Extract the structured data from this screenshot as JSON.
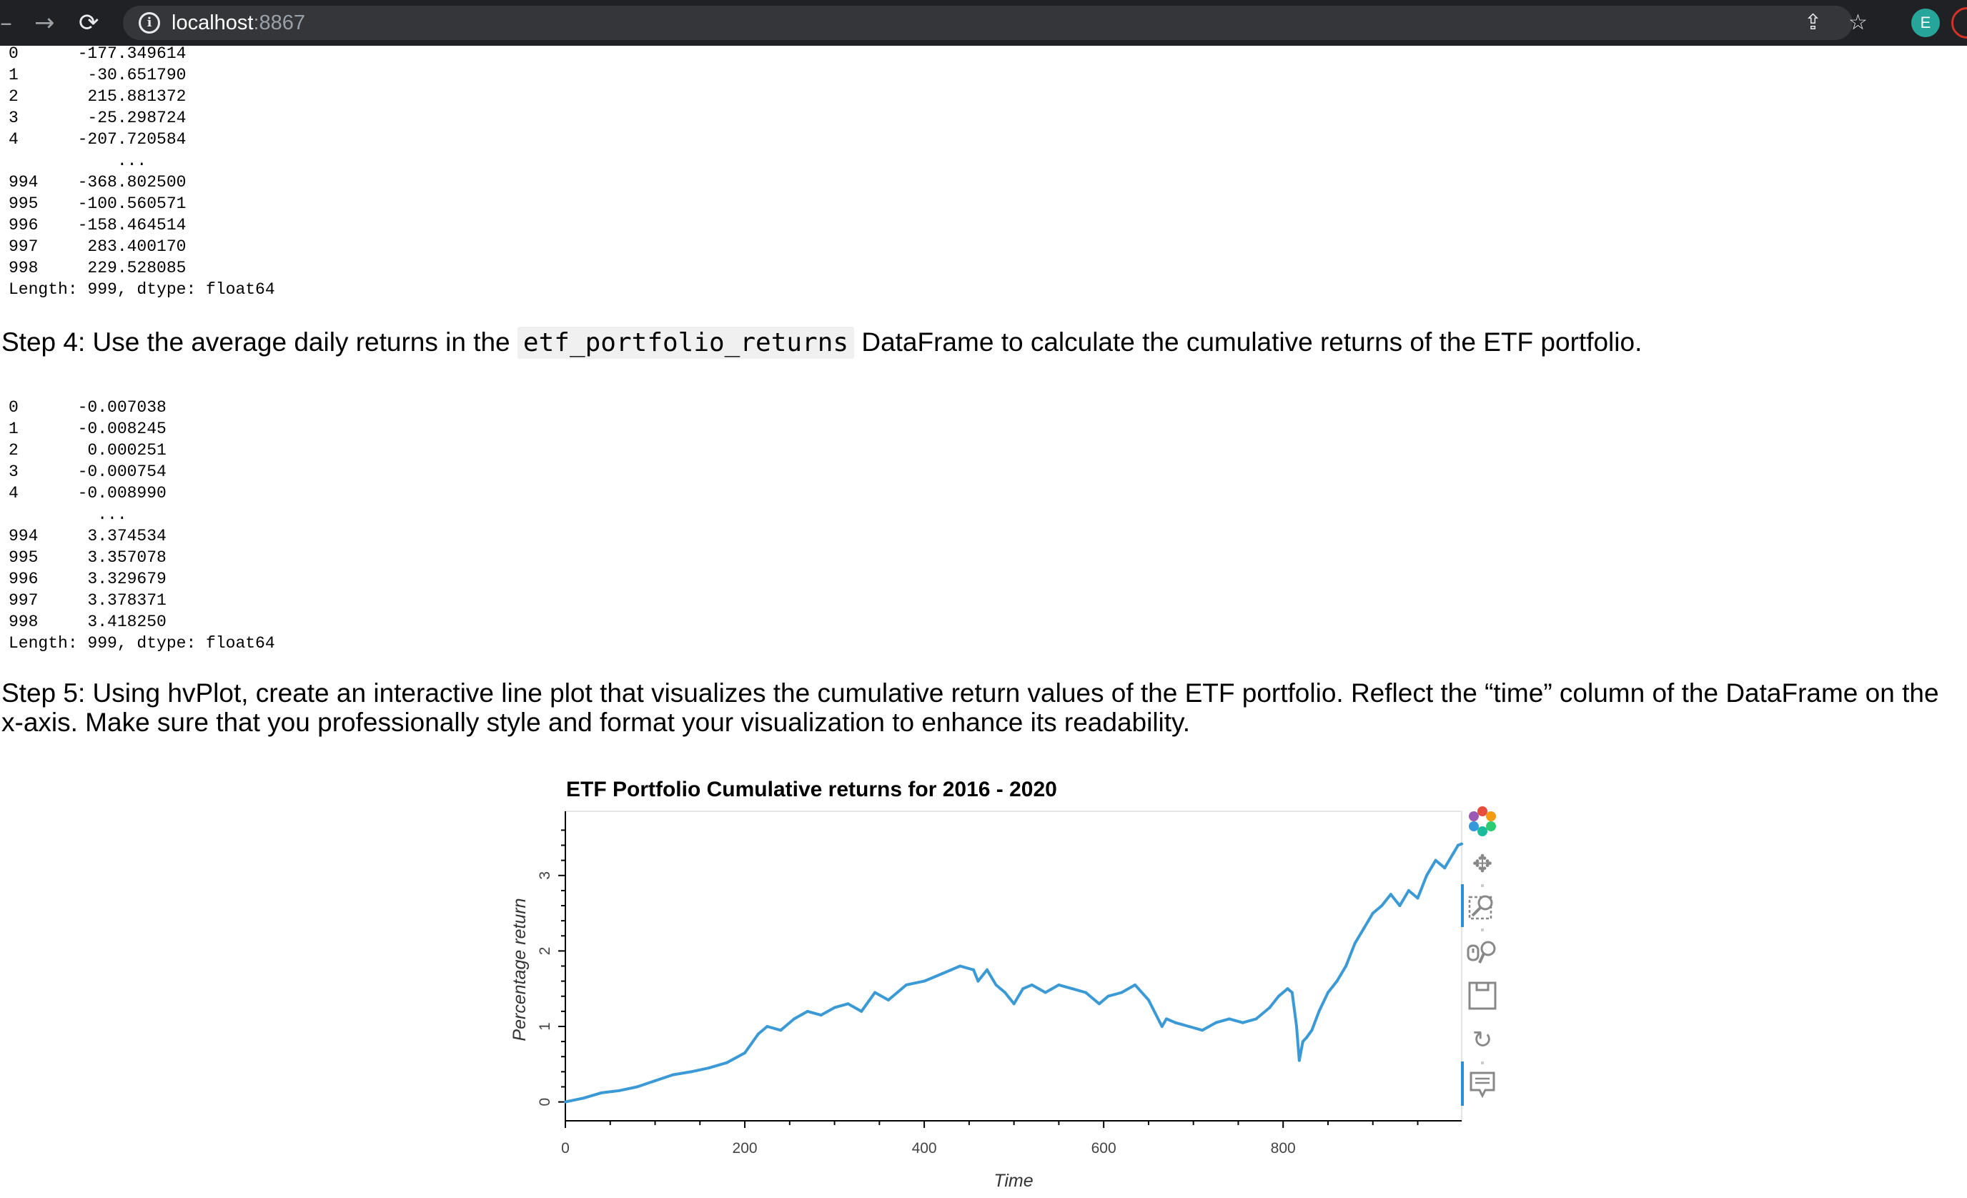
{
  "browser": {
    "url_host": "localhost",
    "url_port": ":8867",
    "profile_initial": "E",
    "icons": [
      "back-icon",
      "forward-icon",
      "reload-icon",
      "info-icon",
      "share-icon",
      "bookmark-star-icon"
    ]
  },
  "output1": {
    "lines": [
      "0      -177.349614",
      "1       -30.651790",
      "2       215.881372",
      "3       -25.298724",
      "4      -207.720584",
      "           ...    ",
      "994    -368.802500",
      "995    -100.560571",
      "996    -158.464514",
      "997     283.400170",
      "998     229.528085",
      "Length: 999, dtype: float64"
    ]
  },
  "step4": {
    "before": "Step 4: Use the average daily returns in the ",
    "code": "etf_portfolio_returns",
    "after": " DataFrame to calculate the cumulative returns of the ETF portfolio."
  },
  "output2": {
    "lines": [
      "0      -0.007038",
      "1      -0.008245",
      "2       0.000251",
      "3      -0.000754",
      "4      -0.008990",
      "         ...    ",
      "994     3.374534",
      "995     3.357078",
      "996     3.329679",
      "997     3.378371",
      "998     3.418250",
      "Length: 999, dtype: float64"
    ]
  },
  "step5": {
    "text": "Step 5: Using hvPlot, create an interactive line plot that visualizes the cumulative return values of the ETF portfolio. Reflect the “time” column of the DataFrame on the x-axis. Make sure that you professionally style and format your visualization to enhance its readability."
  },
  "toolbar": {
    "icons": [
      "bokeh-logo-icon",
      "pan-icon",
      "box-zoom-icon",
      "wheel-zoom-icon",
      "save-icon",
      "reset-icon",
      "hover-icon"
    ]
  },
  "chart_data": {
    "type": "line",
    "title": "ETF Portfolio Cumulative returns for 2016 - 2020",
    "xlabel": "Time",
    "ylabel": "Percentage return",
    "xlim": [
      0,
      999
    ],
    "ylim": [
      -0.25,
      3.85
    ],
    "xticks": [
      0,
      200,
      400,
      600,
      800
    ],
    "yticks": [
      0,
      1,
      2,
      3
    ],
    "line_color": "#3b9ad5",
    "grid": false,
    "series": [
      {
        "x": [
          0,
          20,
          40,
          60,
          80,
          100,
          120,
          140,
          160,
          180,
          200,
          215,
          225,
          240,
          255,
          270,
          285,
          300,
          315,
          330,
          345,
          360,
          380,
          400,
          420,
          440,
          455,
          460,
          470,
          480,
          490,
          500,
          510,
          520,
          535,
          550,
          565,
          580,
          595,
          605,
          620,
          635,
          650,
          665,
          670,
          680,
          695,
          710,
          725,
          740,
          755,
          770,
          785,
          795,
          805,
          810,
          815,
          818,
          822,
          826,
          832,
          840,
          850,
          860,
          870,
          880,
          890,
          900,
          910,
          920,
          930,
          940,
          950,
          960,
          970,
          980,
          990,
          995,
          999
        ],
        "y": [
          0.0,
          0.05,
          0.12,
          0.15,
          0.2,
          0.28,
          0.36,
          0.4,
          0.45,
          0.52,
          0.65,
          0.9,
          1.0,
          0.95,
          1.1,
          1.2,
          1.15,
          1.25,
          1.3,
          1.2,
          1.45,
          1.35,
          1.55,
          1.6,
          1.7,
          1.8,
          1.75,
          1.6,
          1.75,
          1.55,
          1.45,
          1.3,
          1.5,
          1.55,
          1.45,
          1.55,
          1.5,
          1.45,
          1.3,
          1.4,
          1.45,
          1.55,
          1.35,
          1.0,
          1.1,
          1.05,
          1.0,
          0.95,
          1.05,
          1.1,
          1.05,
          1.1,
          1.25,
          1.4,
          1.5,
          1.45,
          1.0,
          0.55,
          0.8,
          0.85,
          0.95,
          1.2,
          1.45,
          1.6,
          1.8,
          2.1,
          2.3,
          2.5,
          2.6,
          2.75,
          2.6,
          2.8,
          2.7,
          3.0,
          3.2,
          3.1,
          3.3,
          3.4,
          3.418
        ]
      }
    ]
  }
}
